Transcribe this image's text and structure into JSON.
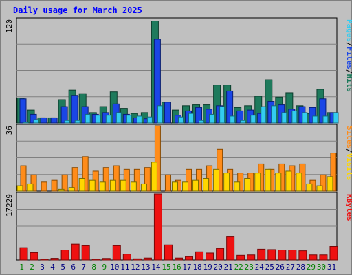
{
  "chart_data": {
    "title": "Daily usage for March 2025",
    "type": "bar",
    "x": [
      "1",
      "2",
      "3",
      "4",
      "5",
      "6",
      "7",
      "8",
      "9",
      "10",
      "11",
      "12",
      "13",
      "14",
      "15",
      "16",
      "17",
      "18",
      "19",
      "20",
      "21",
      "22",
      "23",
      "24",
      "25",
      "26",
      "27",
      "28",
      "29",
      "30",
      "31"
    ],
    "weekend_days": [
      "1",
      "2",
      "8",
      "9",
      "15",
      "16",
      "22",
      "23",
      "29",
      "30"
    ],
    "panels": [
      {
        "name": "hits",
        "ymax": 120,
        "ymax_label": "120",
        "right_label_parts": [
          "Pages",
          "/",
          "Files",
          "/",
          "Hits"
        ],
        "series": [
          {
            "name": "Hits",
            "color": "#1e7a5c",
            "values": [
              29,
              15,
              6,
              6,
              27,
              38,
              34,
              12,
              19,
              36,
              17,
              11,
              12,
              118,
              24,
              15,
              20,
              21,
              21,
              44,
              44,
              18,
              20,
              31,
              50,
              30,
              35,
              20,
              11,
              39,
              12
            ]
          },
          {
            "name": "Files",
            "color": "#1a46e6",
            "values": [
              28,
              10,
              6,
              6,
              19,
              32,
              19,
              10,
              12,
              22,
              10,
              6,
              5,
              97,
              24,
              9,
              14,
              18,
              16,
              20,
              37,
              14,
              15,
              11,
              25,
              21,
              16,
              19,
              18,
              28,
              12
            ]
          },
          {
            "name": "Pages",
            "color": "#33ccf0",
            "values": [
              1,
              4,
              0,
              0,
              3,
              3,
              10,
              9,
              9,
              12,
              9,
              8,
              7,
              20,
              0,
              7,
              11,
              3,
              10,
              19,
              8,
              3,
              9,
              19,
              20,
              12,
              14,
              12,
              8,
              8,
              12
            ]
          }
        ]
      },
      {
        "name": "visits",
        "ymax": 36,
        "ymax_label": "36",
        "right_label_parts": [
          "Sites",
          "/",
          "Visits"
        ],
        "series": [
          {
            "name": "Visits",
            "color": "#ff8c1a",
            "values": [
              14,
              9,
              5,
              6,
              9,
              13,
              19,
              11,
              13,
              14,
              12,
              12,
              13,
              36,
              9,
              6,
              12,
              12,
              14,
              23,
              12,
              10,
              10,
              15,
              12,
              15,
              14,
              15,
              6,
              9,
              21
            ]
          },
          {
            "name": "Sites",
            "color": "#ffd700",
            "values": [
              3,
              4,
              0,
              0,
              1,
              2,
              7,
              6,
              5,
              6,
              6,
              5,
              4,
              16,
              0,
              5,
              5,
              6,
              7,
              12,
              10,
              5,
              7,
              10,
              12,
              10,
              11,
              10,
              4,
              3,
              8
            ]
          }
        ]
      },
      {
        "name": "kbytes",
        "ymax": 17229,
        "ymax_label": "17229",
        "right_label_parts": [
          "KBytes"
        ],
        "series": [
          {
            "name": "KBytes",
            "color": "#ee1111",
            "values": [
              3200,
              1900,
              230,
              430,
              2600,
              4100,
              3700,
              230,
              400,
              3700,
              1500,
              300,
              500,
              17229,
              3900,
              500,
              850,
              2100,
              1800,
              3000,
              6000,
              1200,
              1300,
              2800,
              2700,
              2600,
              2600,
              2400,
              1300,
              1300,
              3500
            ]
          }
        ]
      }
    ]
  }
}
